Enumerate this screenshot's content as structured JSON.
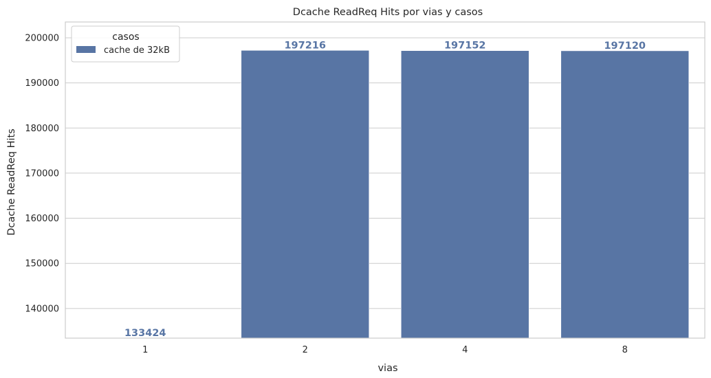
{
  "chart_data": {
    "type": "bar",
    "title": "Dcache ReadReq Hits por vias y casos",
    "xlabel": "vias",
    "ylabel": "Dcache ReadReq Hits",
    "categories": [
      "1",
      "2",
      "4",
      "8"
    ],
    "series": [
      {
        "name": "cache de 32kB",
        "values": [
          133424,
          197216,
          197152,
          197120
        ]
      }
    ],
    "data_labels": [
      "133424",
      "197216",
      "197152",
      "197120"
    ],
    "ylim": [
      133424,
      203505
    ],
    "yticks": [
      140000,
      150000,
      160000,
      170000,
      180000,
      190000,
      200000
    ],
    "ytick_labels": [
      "140000",
      "150000",
      "160000",
      "170000",
      "180000",
      "190000",
      "200000"
    ],
    "grid": true,
    "legend": {
      "title": "casos",
      "placement": "top-left"
    },
    "colors": {
      "bar": "#5875a4",
      "grid": "#cccccc",
      "spine": "#cccccc"
    }
  }
}
